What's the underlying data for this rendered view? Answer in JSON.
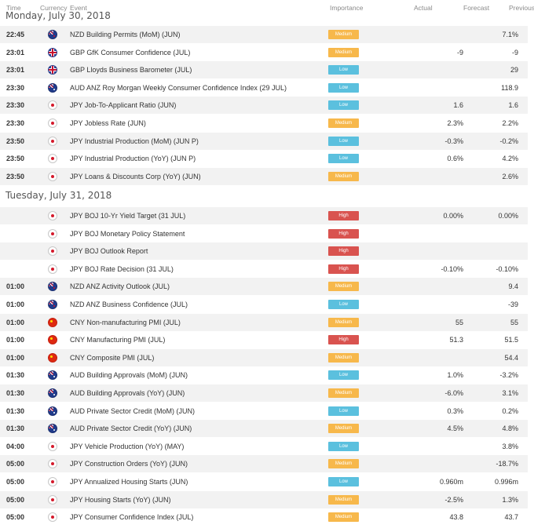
{
  "columns": {
    "time": "Time",
    "currency": "Currency",
    "event": "Event",
    "importance": "Importance",
    "actual": "Actual",
    "forecast": "Forecast",
    "previous": "Previous"
  },
  "importance_colors": {
    "Medium": "#f7b84b",
    "Low": "#5bc0de",
    "High": "#d9534f"
  },
  "days": [
    {
      "label": "Monday, July 30, 2018",
      "rows": [
        {
          "time": "22:45",
          "flag": "nz",
          "event": "NZD Building Permits (MoM) (JUN)",
          "importance": "Medium",
          "actual": "",
          "forecast": "",
          "previous": "7.1%"
        },
        {
          "time": "23:01",
          "flag": "gb",
          "event": "GBP GfK Consumer Confidence (JUL)",
          "importance": "Medium",
          "actual": "",
          "forecast": "-9",
          "previous": "-9"
        },
        {
          "time": "23:01",
          "flag": "gb",
          "event": "GBP Lloyds Business Barometer (JUL)",
          "importance": "Low",
          "actual": "",
          "forecast": "",
          "previous": "29"
        },
        {
          "time": "23:30",
          "flag": "au",
          "event": "AUD ANZ Roy Morgan Weekly Consumer Confidence Index (29 JUL)",
          "importance": "Low",
          "actual": "",
          "forecast": "",
          "previous": "118.9"
        },
        {
          "time": "23:30",
          "flag": "jp",
          "event": "JPY Job-To-Applicant Ratio (JUN)",
          "importance": "Low",
          "actual": "",
          "forecast": "1.6",
          "previous": "1.6"
        },
        {
          "time": "23:30",
          "flag": "jp",
          "event": "JPY Jobless Rate (JUN)",
          "importance": "Medium",
          "actual": "",
          "forecast": "2.3%",
          "previous": "2.2%"
        },
        {
          "time": "23:50",
          "flag": "jp",
          "event": "JPY Industrial Production (MoM) (JUN P)",
          "importance": "Low",
          "actual": "",
          "forecast": "-0.3%",
          "previous": "-0.2%"
        },
        {
          "time": "23:50",
          "flag": "jp",
          "event": "JPY Industrial Production (YoY) (JUN P)",
          "importance": "Low",
          "actual": "",
          "forecast": "0.6%",
          "previous": "4.2%"
        },
        {
          "time": "23:50",
          "flag": "jp",
          "event": "JPY Loans & Discounts Corp (YoY) (JUN)",
          "importance": "Medium",
          "actual": "",
          "forecast": "",
          "previous": "2.6%"
        }
      ]
    },
    {
      "label": "Tuesday, July 31, 2018",
      "rows": [
        {
          "time": "",
          "flag": "jp",
          "event": "JPY BOJ 10-Yr Yield Target (31 JUL)",
          "importance": "High",
          "actual": "",
          "forecast": "0.00%",
          "previous": "0.00%"
        },
        {
          "time": "",
          "flag": "jp",
          "event": "JPY BOJ Monetary Policy Statement",
          "importance": "High",
          "actual": "",
          "forecast": "",
          "previous": ""
        },
        {
          "time": "",
          "flag": "jp",
          "event": "JPY BOJ Outlook Report",
          "importance": "High",
          "actual": "",
          "forecast": "",
          "previous": ""
        },
        {
          "time": "",
          "flag": "jp",
          "event": "JPY BOJ Rate Decision (31 JUL)",
          "importance": "High",
          "actual": "",
          "forecast": "-0.10%",
          "previous": "-0.10%"
        },
        {
          "time": "01:00",
          "flag": "nz",
          "event": "NZD ANZ Activity Outlook (JUL)",
          "importance": "Medium",
          "actual": "",
          "forecast": "",
          "previous": "9.4"
        },
        {
          "time": "01:00",
          "flag": "nz",
          "event": "NZD ANZ Business Confidence (JUL)",
          "importance": "Low",
          "actual": "",
          "forecast": "",
          "previous": "-39"
        },
        {
          "time": "01:00",
          "flag": "cn",
          "event": "CNY Non-manufacturing PMI (JUL)",
          "importance": "Medium",
          "actual": "",
          "forecast": "55",
          "previous": "55"
        },
        {
          "time": "01:00",
          "flag": "cn",
          "event": "CNY Manufacturing PMI (JUL)",
          "importance": "High",
          "actual": "",
          "forecast": "51.3",
          "previous": "51.5"
        },
        {
          "time": "01:00",
          "flag": "cn",
          "event": "CNY Composite PMI (JUL)",
          "importance": "Medium",
          "actual": "",
          "forecast": "",
          "previous": "54.4"
        },
        {
          "time": "01:30",
          "flag": "au",
          "event": "AUD Building Approvals (MoM) (JUN)",
          "importance": "Low",
          "actual": "",
          "forecast": "1.0%",
          "previous": "-3.2%"
        },
        {
          "time": "01:30",
          "flag": "au",
          "event": "AUD Building Approvals (YoY) (JUN)",
          "importance": "Medium",
          "actual": "",
          "forecast": "-6.0%",
          "previous": "3.1%"
        },
        {
          "time": "01:30",
          "flag": "au",
          "event": "AUD Private Sector Credit (MoM) (JUN)",
          "importance": "Low",
          "actual": "",
          "forecast": "0.3%",
          "previous": "0.2%"
        },
        {
          "time": "01:30",
          "flag": "au",
          "event": "AUD Private Sector Credit (YoY) (JUN)",
          "importance": "Medium",
          "actual": "",
          "forecast": "4.5%",
          "previous": "4.8%"
        },
        {
          "time": "04:00",
          "flag": "jp",
          "event": "JPY Vehicle Production (YoY) (MAY)",
          "importance": "Low",
          "actual": "",
          "forecast": "",
          "previous": "3.8%"
        },
        {
          "time": "05:00",
          "flag": "jp",
          "event": "JPY Construction Orders (YoY) (JUN)",
          "importance": "Medium",
          "actual": "",
          "forecast": "",
          "previous": "-18.7%"
        },
        {
          "time": "05:00",
          "flag": "jp",
          "event": "JPY Annualized Housing Starts (JUN)",
          "importance": "Low",
          "actual": "",
          "forecast": "0.960m",
          "previous": "0.996m"
        },
        {
          "time": "05:00",
          "flag": "jp",
          "event": "JPY Housing Starts (YoY) (JUN)",
          "importance": "Medium",
          "actual": "",
          "forecast": "-2.5%",
          "previous": "1.3%"
        },
        {
          "time": "05:00",
          "flag": "jp",
          "event": "JPY Consumer Confidence Index (JUL)",
          "importance": "Medium",
          "actual": "",
          "forecast": "43.8",
          "previous": "43.7"
        }
      ]
    }
  ]
}
